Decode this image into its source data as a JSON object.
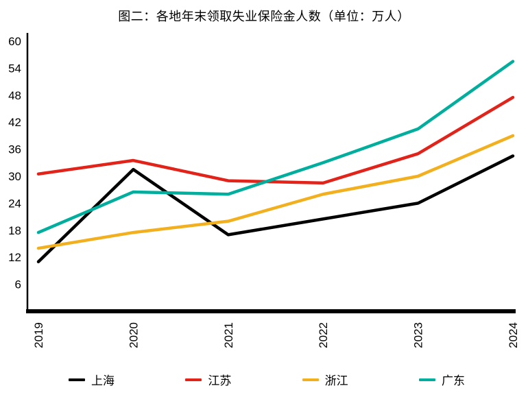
{
  "title": "图二：各地年末领取失业保险金人数（单位：万人）",
  "chart_data": {
    "type": "line",
    "x": [
      "2019",
      "2020",
      "2021",
      "2022",
      "2023",
      "2024"
    ],
    "series": [
      {
        "id": "shanghai",
        "name": "上海",
        "color": "#000000",
        "values": [
          11,
          31.5,
          17,
          20.5,
          24,
          34.5
        ]
      },
      {
        "id": "jiangsu",
        "name": "江苏",
        "color": "#e2231a",
        "values": [
          30.5,
          33.5,
          29,
          28.5,
          35,
          47.5
        ]
      },
      {
        "id": "zhejiang",
        "name": "浙江",
        "color": "#f2b01e",
        "values": [
          14,
          17.5,
          20,
          26,
          30,
          39
        ]
      },
      {
        "id": "guangdong",
        "name": "广东",
        "color": "#00ae9d",
        "values": [
          17.5,
          26.5,
          26,
          33,
          40.5,
          55.5
        ]
      }
    ],
    "xlabel": "",
    "ylabel": "",
    "ylim": [
      0,
      60
    ],
    "yticks": [
      6,
      12,
      18,
      24,
      30,
      36,
      42,
      48,
      54,
      60
    ],
    "grid": false,
    "legend_position": "bottom",
    "x_tick_rotation": 90
  }
}
